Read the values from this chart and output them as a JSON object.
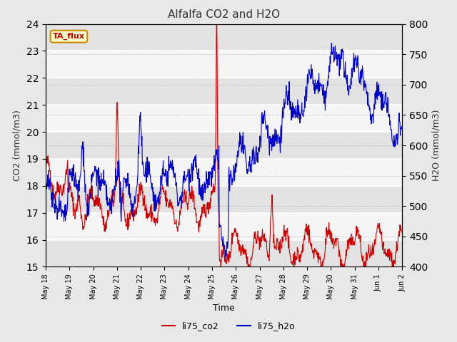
{
  "title": "Alfalfa CO2 and H2O",
  "xlabel": "Time",
  "ylabel_left": "CO2 (mmol/m3)",
  "ylabel_right": "H2O (mmol/m3)",
  "ylim_left": [
    15.0,
    24.0
  ],
  "ylim_right": [
    400,
    800
  ],
  "yticks_left": [
    15.0,
    16.0,
    17.0,
    18.0,
    19.0,
    20.0,
    21.0,
    22.0,
    23.0,
    24.0
  ],
  "yticks_right": [
    400,
    450,
    500,
    550,
    600,
    650,
    700,
    750,
    800
  ],
  "xtick_labels": [
    "May 18",
    "May 19",
    "May 20",
    "May 21",
    "May 22",
    "May 23",
    "May 24",
    "May 25",
    "May 26",
    "May 27",
    "May 28",
    "May 29",
    "May 30",
    "May 31",
    "Jun 1",
    "Jun 2"
  ],
  "color_co2": "#CC0000",
  "color_h2o": "#0000CC",
  "legend_label_co2": "li75_co2",
  "legend_label_h2o": "li75_h2o",
  "annotation_text": "TA_flux",
  "annotation_bg": "#FFFFCC",
  "annotation_border": "#CC8800",
  "bg_color": "#E8E8E8",
  "plot_bg": "#F5F5F5",
  "grid_color": "white"
}
